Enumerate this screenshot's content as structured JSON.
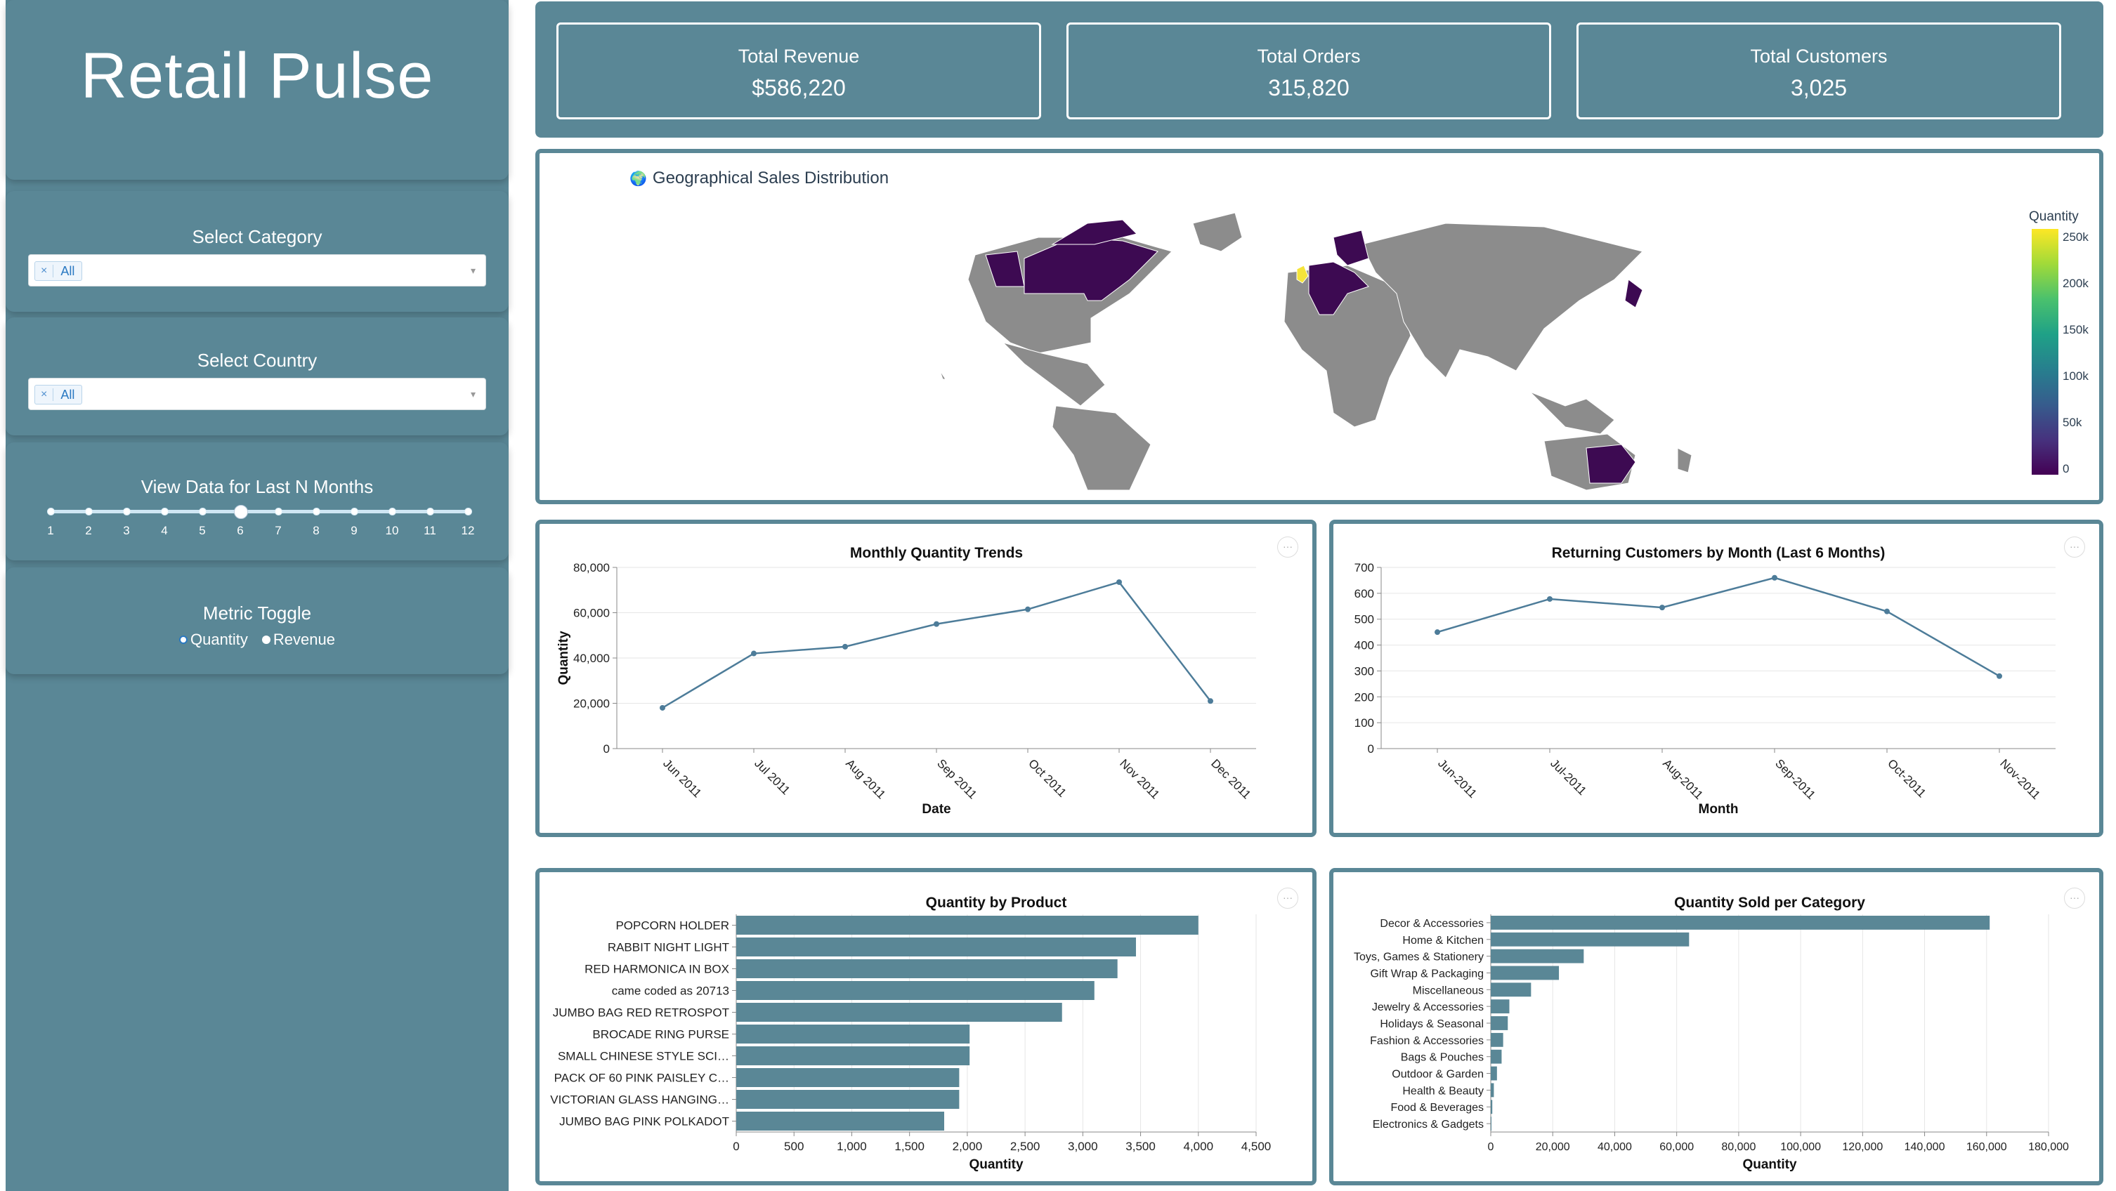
{
  "sidebar": {
    "title": "Retail Pulse",
    "category": {
      "label": "Select Category",
      "selected": "All",
      "remove": "×",
      "caret": "▾"
    },
    "country": {
      "label": "Select Country",
      "selected": "All",
      "remove": "×",
      "caret": "▾"
    },
    "months": {
      "label": "View Data for Last N Months",
      "ticks": [
        "1",
        "2",
        "3",
        "4",
        "5",
        "6",
        "7",
        "8",
        "9",
        "10",
        "11",
        "12"
      ],
      "value": 6
    },
    "metric": {
      "label": "Metric Toggle",
      "options": [
        "Quantity",
        "Revenue"
      ],
      "selected": "Quantity"
    }
  },
  "kpis": [
    {
      "label": "Total Revenue",
      "value": "$586,220"
    },
    {
      "label": "Total Orders",
      "value": "315,820"
    },
    {
      "label": "Total Customers",
      "value": "3,025"
    }
  ],
  "map": {
    "title": "Geographical Sales Distribution",
    "globe_icon": "🌍",
    "legend_title": "Quantity",
    "legend_ticks": [
      "250k",
      "200k",
      "150k",
      "100k",
      "50k",
      "0"
    ],
    "colors": {
      "land": "#8c8c8c",
      "low": "#3d0a52",
      "high": "#f5e43a"
    }
  },
  "charts": {
    "menu": "···",
    "monthly": {
      "type": "line",
      "title": "Monthly Quantity Trends",
      "xlabel": "Date",
      "ylabel": "Quantity",
      "categories": [
        "Jun 2011",
        "Jul 2011",
        "Aug 2011",
        "Sep 2011",
        "Oct 2011",
        "Nov 2011",
        "Dec 2011"
      ],
      "values": [
        18000,
        42000,
        45000,
        55000,
        61500,
        73500,
        21000
      ],
      "ylim": [
        0,
        80000
      ],
      "yticks": [
        0,
        20000,
        40000,
        60000,
        80000
      ],
      "ytick_labels": [
        "0",
        "20,000",
        "40,000",
        "60,000",
        "80,000"
      ]
    },
    "returning": {
      "type": "line",
      "title": "Returning Customers by Month (Last 6 Months)",
      "xlabel": "Month",
      "ylabel": "",
      "categories": [
        "Jun-2011",
        "Jul-2011",
        "Aug-2011",
        "Sep-2011",
        "Oct-2011",
        "Nov-2011"
      ],
      "values": [
        450,
        578,
        545,
        660,
        530,
        280
      ],
      "ylim": [
        0,
        700
      ],
      "yticks": [
        0,
        100,
        200,
        300,
        400,
        500,
        600,
        700
      ],
      "ytick_labels": [
        "0",
        "100",
        "200",
        "300",
        "400",
        "500",
        "600",
        "700"
      ]
    },
    "product": {
      "type": "bar",
      "title": "Quantity by Product",
      "xlabel": "Quantity",
      "categories": [
        "POPCORN HOLDER",
        "RABBIT NIGHT LIGHT",
        "RED  HARMONICA IN BOX",
        "came coded as 20713",
        "JUMBO BAG RED RETROSPOT",
        "BROCADE RING PURSE",
        "SMALL CHINESE STYLE SCI…",
        "PACK OF 60 PINK PAISLEY C…",
        "VICTORIAN GLASS HANGING…",
        "JUMBO BAG PINK POLKADOT"
      ],
      "values": [
        4000,
        3460,
        3300,
        3100,
        2820,
        2020,
        2020,
        1930,
        1930,
        1800
      ],
      "xlim": [
        0,
        4500
      ],
      "xticks": [
        0,
        500,
        1000,
        1500,
        2000,
        2500,
        3000,
        3500,
        4000,
        4500
      ],
      "xtick_labels": [
        "0",
        "500",
        "1,000",
        "1,500",
        "2,000",
        "2,500",
        "3,000",
        "3,500",
        "4,000",
        "4,500"
      ]
    },
    "category": {
      "type": "bar",
      "title": "Quantity Sold per Category",
      "xlabel": "Quantity",
      "categories": [
        "Decor & Accessories",
        "Home & Kitchen",
        "Toys, Games & Stationery",
        "Gift Wrap & Packaging",
        "Miscellaneous",
        "Jewelry & Accessories",
        "Holidays & Seasonal",
        "Fashion & Accessories",
        "Bags & Pouches",
        "Outdoor & Garden",
        "Health & Beauty",
        "Food & Beverages",
        "Electronics & Gadgets"
      ],
      "values": [
        161000,
        64000,
        30000,
        22000,
        13000,
        6000,
        5500,
        4000,
        3500,
        2000,
        1000,
        500,
        200
      ],
      "xlim": [
        0,
        180000
      ],
      "xticks": [
        0,
        20000,
        40000,
        60000,
        80000,
        100000,
        120000,
        140000,
        160000,
        180000
      ],
      "xtick_labels": [
        "0",
        "20,000",
        "40,000",
        "60,000",
        "80,000",
        "100,000",
        "120,000",
        "140,000",
        "160,000",
        "180,000"
      ]
    }
  }
}
